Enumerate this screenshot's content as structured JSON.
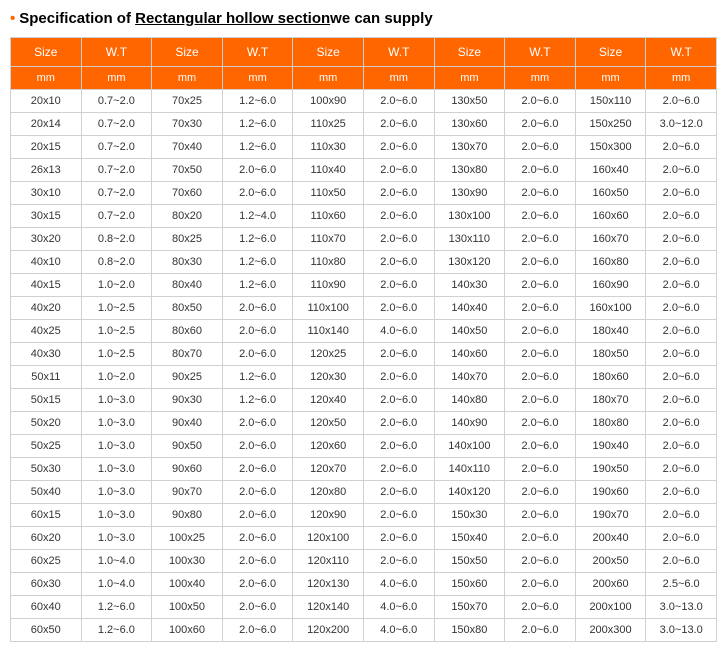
{
  "title": {
    "prefix": "Specification of ",
    "underlined": "Rectangular hollow section",
    "suffix": "we can supply"
  },
  "table": {
    "header_row1": [
      "Size",
      "W.T",
      "Size",
      "W.T",
      "Size",
      "W.T",
      "Size",
      "W.T",
      "Size",
      "W.T"
    ],
    "header_row2": [
      "mm",
      "mm",
      "mm",
      "mm",
      "mm",
      "mm",
      "mm",
      "mm",
      "mm",
      "mm"
    ],
    "rows": [
      [
        "20x10",
        "0.7~2.0",
        "70x25",
        "1.2~6.0",
        "100x90",
        "2.0~6.0",
        "130x50",
        "2.0~6.0",
        "150x110",
        "2.0~6.0"
      ],
      [
        "20x14",
        "0.7~2.0",
        "70x30",
        "1.2~6.0",
        "110x25",
        "2.0~6.0",
        "130x60",
        "2.0~6.0",
        "150x250",
        "3.0~12.0"
      ],
      [
        "20x15",
        "0.7~2.0",
        "70x40",
        "1.2~6.0",
        "110x30",
        "2.0~6.0",
        "130x70",
        "2.0~6.0",
        "150x300",
        "2.0~6.0"
      ],
      [
        "26x13",
        "0.7~2.0",
        "70x50",
        "2.0~6.0",
        "110x40",
        "2.0~6.0",
        "130x80",
        "2.0~6.0",
        "160x40",
        "2.0~6.0"
      ],
      [
        "30x10",
        "0.7~2.0",
        "70x60",
        "2.0~6.0",
        "110x50",
        "2.0~6.0",
        "130x90",
        "2.0~6.0",
        "160x50",
        "2.0~6.0"
      ],
      [
        "30x15",
        "0.7~2.0",
        "80x20",
        "1.2~4.0",
        "110x60",
        "2.0~6.0",
        "130x100",
        "2.0~6.0",
        "160x60",
        "2.0~6.0"
      ],
      [
        "30x20",
        "0.8~2.0",
        "80x25",
        "1.2~6.0",
        "110x70",
        "2.0~6.0",
        "130x110",
        "2.0~6.0",
        "160x70",
        "2.0~6.0"
      ],
      [
        "40x10",
        "0.8~2.0",
        "80x30",
        "1.2~6.0",
        "110x80",
        "2.0~6.0",
        "130x120",
        "2.0~6.0",
        "160x80",
        "2.0~6.0"
      ],
      [
        "40x15",
        "1.0~2.0",
        "80x40",
        "1.2~6.0",
        "110x90",
        "2.0~6.0",
        "140x30",
        "2.0~6.0",
        "160x90",
        "2.0~6.0"
      ],
      [
        "40x20",
        "1.0~2.5",
        "80x50",
        "2.0~6.0",
        "110x100",
        "2.0~6.0",
        "140x40",
        "2.0~6.0",
        "160x100",
        "2.0~6.0"
      ],
      [
        "40x25",
        "1.0~2.5",
        "80x60",
        "2.0~6.0",
        "110x140",
        "4.0~6.0",
        "140x50",
        "2.0~6.0",
        "180x40",
        "2.0~6.0"
      ],
      [
        "40x30",
        "1.0~2.5",
        "80x70",
        "2.0~6.0",
        "120x25",
        "2.0~6.0",
        "140x60",
        "2.0~6.0",
        "180x50",
        "2.0~6.0"
      ],
      [
        "50x11",
        "1.0~2.0",
        "90x25",
        "1.2~6.0",
        "120x30",
        "2.0~6.0",
        "140x70",
        "2.0~6.0",
        "180x60",
        "2.0~6.0"
      ],
      [
        "50x15",
        "1.0~3.0",
        "90x30",
        "1.2~6.0",
        "120x40",
        "2.0~6.0",
        "140x80",
        "2.0~6.0",
        "180x70",
        "2.0~6.0"
      ],
      [
        "50x20",
        "1.0~3.0",
        "90x40",
        "2.0~6.0",
        "120x50",
        "2.0~6.0",
        "140x90",
        "2.0~6.0",
        "180x80",
        "2.0~6.0"
      ],
      [
        "50x25",
        "1.0~3.0",
        "90x50",
        "2.0~6.0",
        "120x60",
        "2.0~6.0",
        "140x100",
        "2.0~6.0",
        "190x40",
        "2.0~6.0"
      ],
      [
        "50x30",
        "1.0~3.0",
        "90x60",
        "2.0~6.0",
        "120x70",
        "2.0~6.0",
        "140x110",
        "2.0~6.0",
        "190x50",
        "2.0~6.0"
      ],
      [
        "50x40",
        "1.0~3.0",
        "90x70",
        "2.0~6.0",
        "120x80",
        "2.0~6.0",
        "140x120",
        "2.0~6.0",
        "190x60",
        "2.0~6.0"
      ],
      [
        "60x15",
        "1.0~3.0",
        "90x80",
        "2.0~6.0",
        "120x90",
        "2.0~6.0",
        "150x30",
        "2.0~6.0",
        "190x70",
        "2.0~6.0"
      ],
      [
        "60x20",
        "1.0~3.0",
        "100x25",
        "2.0~6.0",
        "120x100",
        "2.0~6.0",
        "150x40",
        "2.0~6.0",
        "200x40",
        "2.0~6.0"
      ],
      [
        "60x25",
        "1.0~4.0",
        "100x30",
        "2.0~6.0",
        "120x110",
        "2.0~6.0",
        "150x50",
        "2.0~6.0",
        "200x50",
        "2.0~6.0"
      ],
      [
        "60x30",
        "1.0~4.0",
        "100x40",
        "2.0~6.0",
        "120x130",
        "4.0~6.0",
        "150x60",
        "2.0~6.0",
        "200x60",
        "2.5~6.0"
      ],
      [
        "60x40",
        "1.2~6.0",
        "100x50",
        "2.0~6.0",
        "120x140",
        "4.0~6.0",
        "150x70",
        "2.0~6.0",
        "200x100",
        "3.0~13.0"
      ],
      [
        "60x50",
        "1.2~6.0",
        "100x60",
        "2.0~6.0",
        "120x200",
        "4.0~6.0",
        "150x80",
        "2.0~6.0",
        "200x300",
        "3.0~13.0"
      ]
    ]
  }
}
